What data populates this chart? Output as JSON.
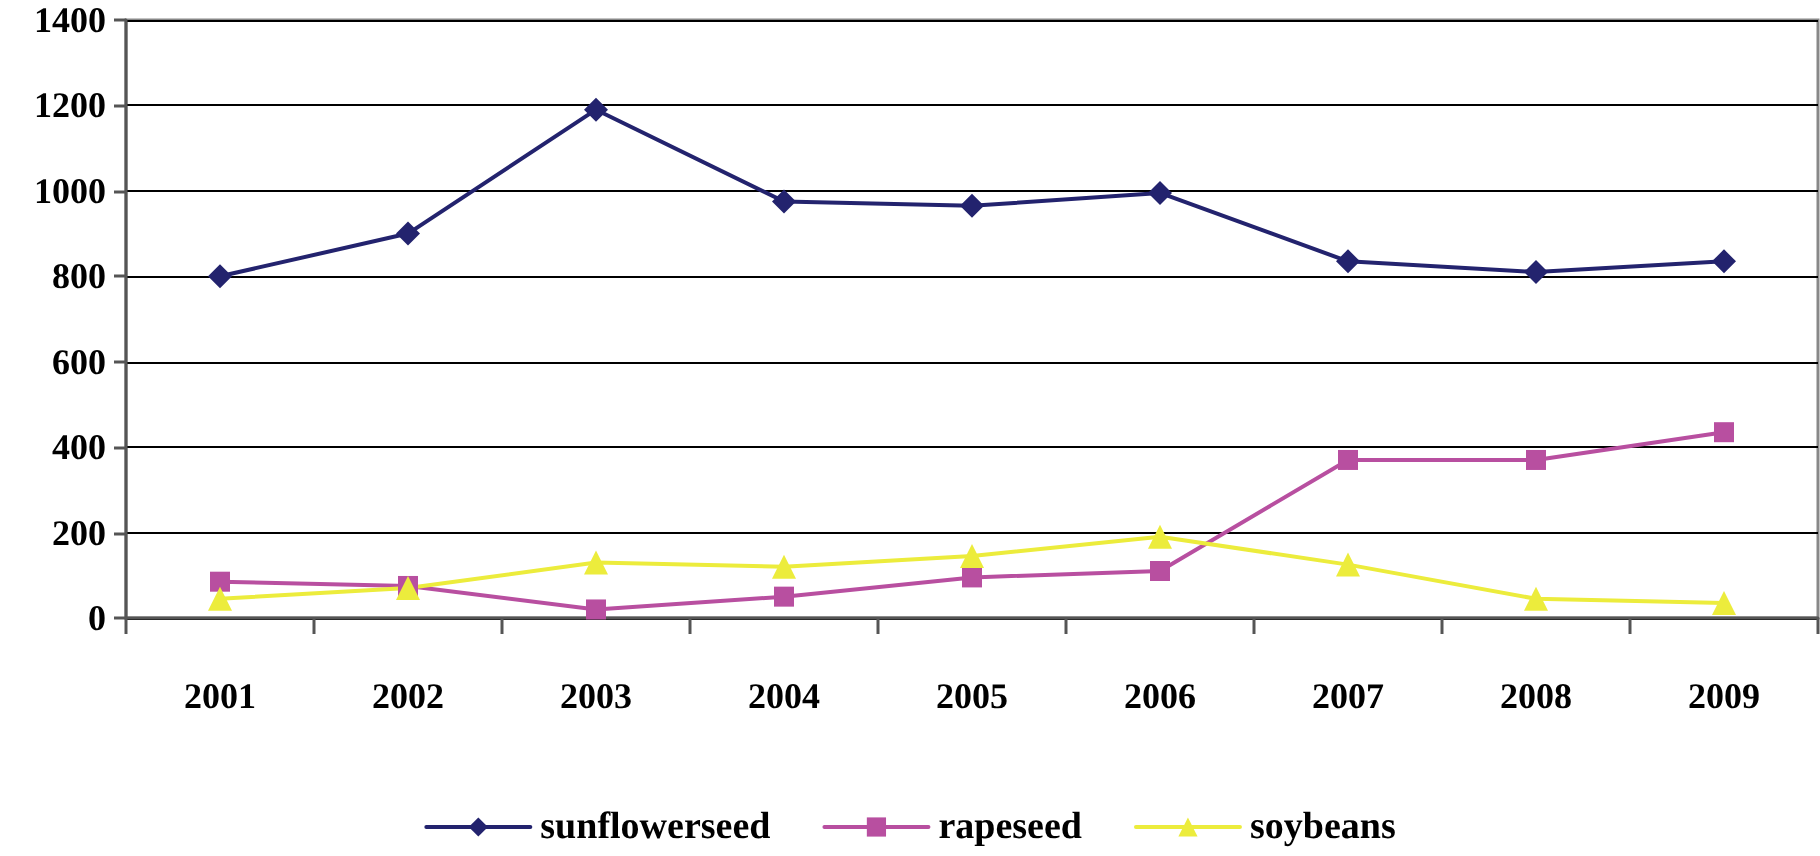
{
  "chart_data": {
    "type": "line",
    "categories": [
      "2001",
      "2002",
      "2003",
      "2004",
      "2005",
      "2006",
      "2007",
      "2008",
      "2009"
    ],
    "series": [
      {
        "name": "sunflowerseed",
        "color": "#23236e",
        "marker": "diamond",
        "values": [
          800,
          900,
          1190,
          975,
          965,
          995,
          835,
          810,
          835
        ]
      },
      {
        "name": "rapeseed",
        "color": "#b84fa0",
        "marker": "square",
        "values": [
          85,
          75,
          20,
          50,
          95,
          110,
          370,
          370,
          435
        ]
      },
      {
        "name": "soybeans",
        "color": "#ecec3c",
        "marker": "triangle",
        "values": [
          45,
          70,
          130,
          120,
          145,
          190,
          125,
          45,
          35
        ]
      }
    ],
    "ylim": [
      0,
      1400
    ],
    "yticks": [
      0,
      200,
      400,
      600,
      800,
      1000,
      1200,
      1400
    ],
    "grid": "y",
    "legend": "bottom",
    "line_style": "solid"
  }
}
